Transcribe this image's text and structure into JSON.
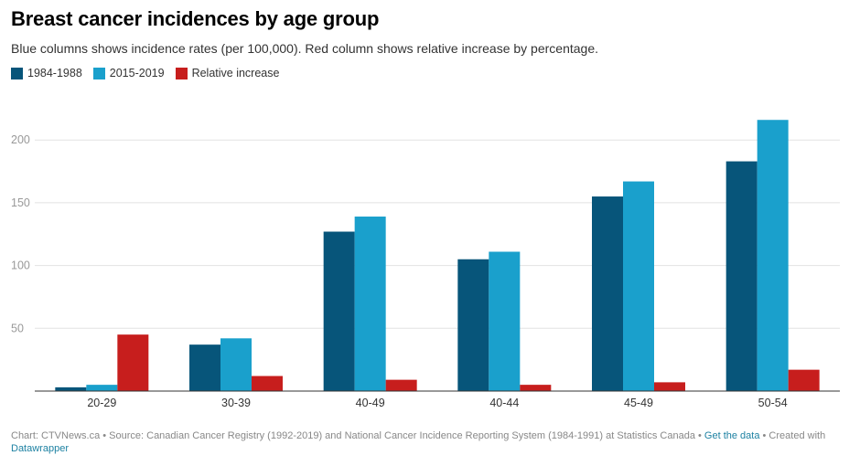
{
  "title": "Breast cancer incidences by age group",
  "subtitle": "Blue columns shows incidence rates (per 100,000). Red column shows relative increase by percentage.",
  "colors": {
    "series_1": "#07557a",
    "series_2": "#1aa0cc",
    "series_3": "#c71e1d",
    "grid": "#e2e2e2",
    "axis": "#333333",
    "tick_text": "#999999",
    "link": "#1d81a2"
  },
  "footer": {
    "prefix": "Chart: CTVNews.ca • Source: Canadian Cancer Registry (1992-2019) and National Cancer Incidence Reporting System (1984-1991) at Statistics Canada • ",
    "data_link": "Get the data",
    "middle": " • Created with ",
    "tool_link": "Datawrapper"
  },
  "chart_data": {
    "type": "bar",
    "categories": [
      "20-29",
      "30-39",
      "40-49",
      "40-44",
      "45-49",
      "50-54"
    ],
    "series": [
      {
        "name": "1984-1988",
        "values": [
          3,
          37,
          127,
          105,
          155,
          183
        ]
      },
      {
        "name": "2015-2019",
        "values": [
          5,
          42,
          139,
          111,
          167,
          216
        ]
      },
      {
        "name": "Relative increase",
        "values": [
          45,
          12,
          9,
          5,
          7,
          17
        ]
      }
    ],
    "ylim": [
      0,
      230
    ],
    "yticks": [
      50,
      100,
      150,
      200
    ],
    "grid": true,
    "legend_position": "top-left",
    "xlabel": "",
    "ylabel": ""
  }
}
